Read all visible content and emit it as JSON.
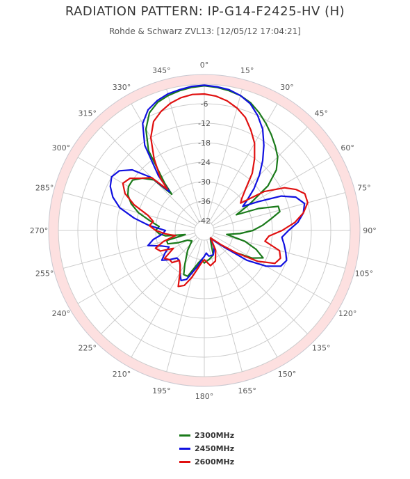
{
  "chart_data": {
    "type": "polar-line",
    "title": "RADIATION PATTERN: IP-G14-F2425-HV (H)",
    "subtitle": "Rohde & Schwarz ZVL13: [12/05/12 17:04:21]",
    "angle_ticks": [
      "0°",
      "15°",
      "30°",
      "45°",
      "60°",
      "75°",
      "90°",
      "105°",
      "120°",
      "135°",
      "150°",
      "165°",
      "180°",
      "195°",
      "210°",
      "225°",
      "240°",
      "255°",
      "270°",
      "285°",
      "300°",
      "315°",
      "330°",
      "345°"
    ],
    "radial_ticks": [
      -6,
      -12,
      -18,
      -24,
      -30,
      -36,
      -42
    ],
    "r_range": [
      -45,
      0
    ],
    "grid": true,
    "legend_position": "bottom",
    "series": [
      {
        "name": "2300MHz",
        "color": "#1a7a1a",
        "points": [
          [
            0,
            -0.5
          ],
          [
            5,
            -0.8
          ],
          [
            10,
            -1.3
          ],
          [
            15,
            -2
          ],
          [
            20,
            -3.2
          ],
          [
            25,
            -5
          ],
          [
            30,
            -7
          ],
          [
            35,
            -9
          ],
          [
            40,
            -11
          ],
          [
            45,
            -13
          ],
          [
            50,
            -16
          ],
          [
            55,
            -21
          ],
          [
            60,
            -29
          ],
          [
            64,
            -34
          ],
          [
            68,
            -27
          ],
          [
            72,
            -21
          ],
          [
            76,
            -21
          ],
          [
            80,
            -24
          ],
          [
            85,
            -27
          ],
          [
            90,
            -30
          ],
          [
            95,
            -34
          ],
          [
            100,
            -38
          ],
          [
            105,
            -32
          ],
          [
            110,
            -28
          ],
          [
            115,
            -25
          ],
          [
            120,
            -28
          ],
          [
            125,
            -33
          ],
          [
            130,
            -37
          ],
          [
            135,
            -40
          ],
          [
            140,
            -42
          ],
          [
            150,
            -41
          ],
          [
            160,
            -37
          ],
          [
            170,
            -36
          ],
          [
            180,
            -35
          ],
          [
            185,
            -36
          ],
          [
            190,
            -35
          ],
          [
            195,
            -33
          ],
          [
            200,
            -30
          ],
          [
            205,
            -30
          ],
          [
            210,
            -33
          ],
          [
            220,
            -37
          ],
          [
            230,
            -40
          ],
          [
            240,
            -39
          ],
          [
            245,
            -36
          ],
          [
            250,
            -33
          ],
          [
            255,
            -33
          ],
          [
            258,
            -39
          ],
          [
            262,
            -33
          ],
          [
            266,
            -31
          ],
          [
            270,
            -30
          ],
          [
            275,
            -31
          ],
          [
            280,
            -28
          ],
          [
            285,
            -24
          ],
          [
            290,
            -21
          ],
          [
            295,
            -19
          ],
          [
            300,
            -18
          ],
          [
            305,
            -18
          ],
          [
            310,
            -20
          ],
          [
            315,
            -23
          ],
          [
            318,
            -30
          ],
          [
            320,
            -26
          ],
          [
            325,
            -15
          ],
          [
            330,
            -9
          ],
          [
            335,
            -5
          ],
          [
            340,
            -3
          ],
          [
            345,
            -2
          ],
          [
            350,
            -1.3
          ],
          [
            355,
            -0.8
          ],
          [
            360,
            -0.5
          ]
        ]
      },
      {
        "name": "2450MHz",
        "color": "#1010e0",
        "points": [
          [
            0,
            -0.3
          ],
          [
            5,
            -0.6
          ],
          [
            10,
            -1
          ],
          [
            15,
            -2
          ],
          [
            20,
            -3.5
          ],
          [
            25,
            -6
          ],
          [
            30,
            -9
          ],
          [
            35,
            -13
          ],
          [
            40,
            -17
          ],
          [
            45,
            -21
          ],
          [
            50,
            -25
          ],
          [
            55,
            -29
          ],
          [
            58,
            -31
          ],
          [
            62,
            -26
          ],
          [
            66,
            -19
          ],
          [
            70,
            -15
          ],
          [
            75,
            -13
          ],
          [
            80,
            -14
          ],
          [
            85,
            -16
          ],
          [
            90,
            -19
          ],
          [
            95,
            -21
          ],
          [
            100,
            -20
          ],
          [
            105,
            -19
          ],
          [
            110,
            -18
          ],
          [
            115,
            -19
          ],
          [
            120,
            -23
          ],
          [
            125,
            -29
          ],
          [
            130,
            -37
          ],
          [
            135,
            -40
          ],
          [
            140,
            -42
          ],
          [
            145,
            -41
          ],
          [
            150,
            -39
          ],
          [
            155,
            -38
          ],
          [
            160,
            -37
          ],
          [
            165,
            -37
          ],
          [
            170,
            -37
          ],
          [
            175,
            -38
          ],
          [
            180,
            -37
          ],
          [
            185,
            -36
          ],
          [
            190,
            -34
          ],
          [
            195,
            -32
          ],
          [
            200,
            -29
          ],
          [
            205,
            -28
          ],
          [
            210,
            -30
          ],
          [
            215,
            -32
          ],
          [
            220,
            -33
          ],
          [
            225,
            -33
          ],
          [
            230,
            -31
          ],
          [
            235,
            -29
          ],
          [
            240,
            -31
          ],
          [
            245,
            -33
          ],
          [
            250,
            -31
          ],
          [
            255,
            -27
          ],
          [
            260,
            -29
          ],
          [
            265,
            -32
          ],
          [
            270,
            -33
          ],
          [
            275,
            -28
          ],
          [
            280,
            -23
          ],
          [
            285,
            -18
          ],
          [
            290,
            -15
          ],
          [
            295,
            -13
          ],
          [
            300,
            -12
          ],
          [
            305,
            -13
          ],
          [
            310,
            -16
          ],
          [
            315,
            -22
          ],
          [
            318,
            -29
          ],
          [
            320,
            -23
          ],
          [
            325,
            -13
          ],
          [
            330,
            -7
          ],
          [
            335,
            -4
          ],
          [
            340,
            -2.5
          ],
          [
            345,
            -1.5
          ],
          [
            350,
            -1
          ],
          [
            355,
            -0.5
          ],
          [
            360,
            -0.3
          ]
        ]
      },
      {
        "name": "2600MHz",
        "color": "#e01010",
        "points": [
          [
            0,
            -3
          ],
          [
            5,
            -3.5
          ],
          [
            10,
            -4.5
          ],
          [
            15,
            -6
          ],
          [
            20,
            -8
          ],
          [
            25,
            -11
          ],
          [
            30,
            -14
          ],
          [
            35,
            -18
          ],
          [
            40,
            -22
          ],
          [
            45,
            -27
          ],
          [
            50,
            -30
          ],
          [
            53,
            -31
          ],
          [
            57,
            -23
          ],
          [
            62,
            -17
          ],
          [
            66,
            -14
          ],
          [
            70,
            -12
          ],
          [
            75,
            -12
          ],
          [
            80,
            -14
          ],
          [
            85,
            -17
          ],
          [
            90,
            -21
          ],
          [
            95,
            -25
          ],
          [
            100,
            -26
          ],
          [
            105,
            -21
          ],
          [
            110,
            -20
          ],
          [
            115,
            -21
          ],
          [
            120,
            -26
          ],
          [
            125,
            -33
          ],
          [
            130,
            -38
          ],
          [
            140,
            -42
          ],
          [
            150,
            -38
          ],
          [
            160,
            -35
          ],
          [
            170,
            -34
          ],
          [
            180,
            -36
          ],
          [
            185,
            -35
          ],
          [
            190,
            -33
          ],
          [
            195,
            -30
          ],
          [
            200,
            -27
          ],
          [
            205,
            -26
          ],
          [
            210,
            -30
          ],
          [
            215,
            -32
          ],
          [
            220,
            -33
          ],
          [
            225,
            -31
          ],
          [
            230,
            -31
          ],
          [
            235,
            -30
          ],
          [
            240,
            -34
          ],
          [
            245,
            -30
          ],
          [
            250,
            -29
          ],
          [
            255,
            -32
          ],
          [
            260,
            -36
          ],
          [
            265,
            -33
          ],
          [
            270,
            -30
          ],
          [
            275,
            -28
          ],
          [
            280,
            -29
          ],
          [
            285,
            -27
          ],
          [
            290,
            -22
          ],
          [
            295,
            -18
          ],
          [
            300,
            -16
          ],
          [
            305,
            -17
          ],
          [
            310,
            -20
          ],
          [
            315,
            -22
          ],
          [
            318,
            -28
          ],
          [
            320,
            -24
          ],
          [
            325,
            -18
          ],
          [
            330,
            -12
          ],
          [
            335,
            -8
          ],
          [
            340,
            -6
          ],
          [
            345,
            -4.5
          ],
          [
            350,
            -3.5
          ],
          [
            355,
            -3
          ],
          [
            360,
            -3
          ]
        ]
      }
    ]
  }
}
